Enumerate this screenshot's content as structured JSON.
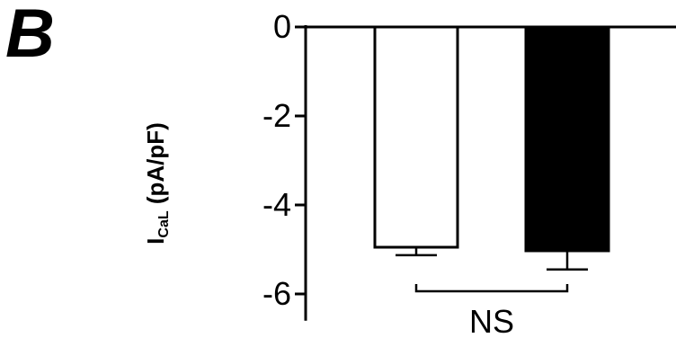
{
  "panel_label": "B",
  "chart_data": {
    "type": "bar",
    "categories": [
      "",
      ""
    ],
    "values": [
      -4.95,
      -5.03
    ],
    "errors": [
      0.18,
      0.42
    ],
    "bar_colors": [
      "#ffffff",
      "#000000"
    ],
    "ylabel": {
      "main": "I",
      "sub": "CaL",
      "rest": " (pA/pF)"
    },
    "yticks": [
      0,
      -2,
      -4,
      -6
    ],
    "ytick_labels": [
      "0",
      "-2",
      "-4",
      "-6"
    ],
    "ylim": [
      -6.6,
      0
    ],
    "annotation": "NS",
    "grid": false
  }
}
